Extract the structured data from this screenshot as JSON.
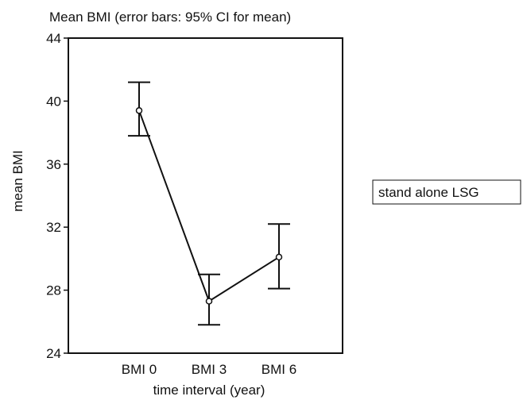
{
  "chart_data": {
    "type": "line",
    "title": "Mean BMI  (error bars: 95% CI for mean)",
    "xlabel": "time interval (year)",
    "ylabel": "mean BMI",
    "categories": [
      "BMI 0",
      "BMI 3",
      "BMI 6"
    ],
    "ylim": [
      24,
      44
    ],
    "yticks": [
      24,
      28,
      32,
      36,
      40,
      44
    ],
    "grid": false,
    "legend_position": "right",
    "series": [
      {
        "name": "stand alone LSG",
        "values": [
          39.4,
          27.3,
          30.1
        ],
        "ci_lower": [
          37.8,
          25.8,
          28.1
        ],
        "ci_upper": [
          41.2,
          29.0,
          32.2
        ]
      }
    ]
  }
}
